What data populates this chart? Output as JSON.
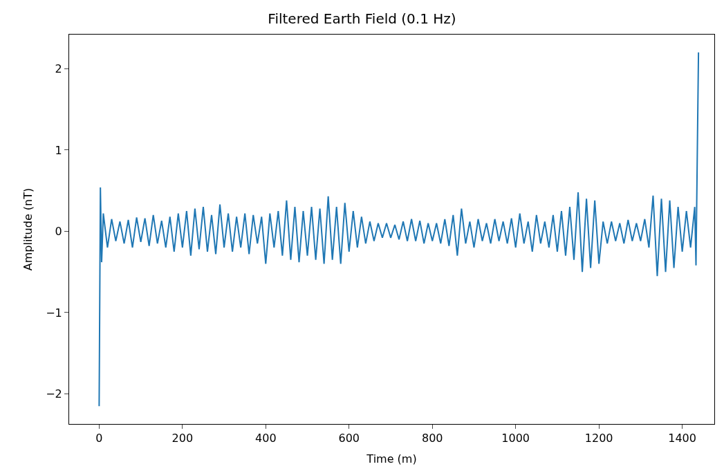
{
  "chart_data": {
    "type": "line",
    "title": "Filtered Earth Field (0.1 Hz)",
    "xlabel": "Time (m)",
    "ylabel": "Amplitude (nT)",
    "x": [
      0,
      3,
      6,
      10,
      20,
      30,
      40,
      50,
      60,
      70,
      80,
      90,
      100,
      110,
      120,
      130,
      140,
      150,
      160,
      170,
      180,
      190,
      200,
      210,
      220,
      230,
      240,
      250,
      260,
      270,
      280,
      290,
      300,
      310,
      320,
      330,
      340,
      350,
      360,
      370,
      380,
      390,
      400,
      410,
      420,
      430,
      440,
      450,
      460,
      470,
      480,
      490,
      500,
      510,
      520,
      530,
      540,
      550,
      560,
      570,
      580,
      590,
      600,
      610,
      620,
      630,
      640,
      650,
      660,
      670,
      680,
      690,
      700,
      710,
      720,
      730,
      740,
      750,
      760,
      770,
      780,
      790,
      800,
      810,
      820,
      830,
      840,
      850,
      860,
      870,
      880,
      890,
      900,
      910,
      920,
      930,
      940,
      950,
      960,
      970,
      980,
      990,
      1000,
      1010,
      1020,
      1030,
      1040,
      1050,
      1060,
      1070,
      1080,
      1090,
      1100,
      1110,
      1120,
      1130,
      1140,
      1150,
      1160,
      1170,
      1180,
      1190,
      1200,
      1210,
      1220,
      1230,
      1240,
      1250,
      1260,
      1270,
      1280,
      1290,
      1300,
      1310,
      1320,
      1330,
      1340,
      1350,
      1360,
      1370,
      1380,
      1390,
      1400,
      1410,
      1420,
      1430,
      1433,
      1439
    ],
    "series": [
      {
        "color": "#1f77b4",
        "values": [
          -2.15,
          0.54,
          -0.38,
          0.22,
          -0.2,
          0.15,
          -0.12,
          0.12,
          -0.15,
          0.14,
          -0.2,
          0.17,
          -0.13,
          0.16,
          -0.18,
          0.2,
          -0.15,
          0.13,
          -0.2,
          0.18,
          -0.25,
          0.22,
          -0.2,
          0.25,
          -0.3,
          0.28,
          -0.22,
          0.3,
          -0.25,
          0.2,
          -0.28,
          0.33,
          -0.2,
          0.22,
          -0.25,
          0.18,
          -0.2,
          0.22,
          -0.28,
          0.2,
          -0.15,
          0.18,
          -0.4,
          0.22,
          -0.2,
          0.25,
          -0.3,
          0.38,
          -0.35,
          0.3,
          -0.38,
          0.25,
          -0.3,
          0.3,
          -0.35,
          0.28,
          -0.4,
          0.43,
          -0.35,
          0.3,
          -0.4,
          0.35,
          -0.25,
          0.25,
          -0.2,
          0.18,
          -0.15,
          0.12,
          -0.12,
          0.1,
          -0.08,
          0.1,
          -0.08,
          0.08,
          -0.1,
          0.12,
          -0.12,
          0.15,
          -0.12,
          0.13,
          -0.15,
          0.1,
          -0.12,
          0.1,
          -0.15,
          0.15,
          -0.18,
          0.2,
          -0.3,
          0.28,
          -0.15,
          0.12,
          -0.2,
          0.15,
          -0.12,
          0.1,
          -0.15,
          0.15,
          -0.12,
          0.12,
          -0.15,
          0.16,
          -0.2,
          0.22,
          -0.15,
          0.12,
          -0.25,
          0.2,
          -0.15,
          0.12,
          -0.2,
          0.2,
          -0.25,
          0.25,
          -0.3,
          0.3,
          -0.35,
          0.48,
          -0.5,
          0.4,
          -0.45,
          0.38,
          -0.4,
          0.12,
          -0.15,
          0.12,
          -0.12,
          0.1,
          -0.15,
          0.14,
          -0.12,
          0.1,
          -0.12,
          0.15,
          -0.2,
          0.44,
          -0.55,
          0.4,
          -0.5,
          0.38,
          -0.45,
          0.3,
          -0.25,
          0.25,
          -0.2,
          0.3,
          -0.42,
          2.2
        ]
      }
    ],
    "xlim": [
      -72,
      1477
    ],
    "ylim": [
      -2.37,
      2.42
    ],
    "xticks": [
      0,
      200,
      400,
      600,
      800,
      1000,
      1200,
      1400
    ],
    "yticks": [
      {
        "value": -2,
        "label": "−2"
      },
      {
        "value": -1,
        "label": "−1"
      },
      0,
      1,
      2
    ]
  }
}
